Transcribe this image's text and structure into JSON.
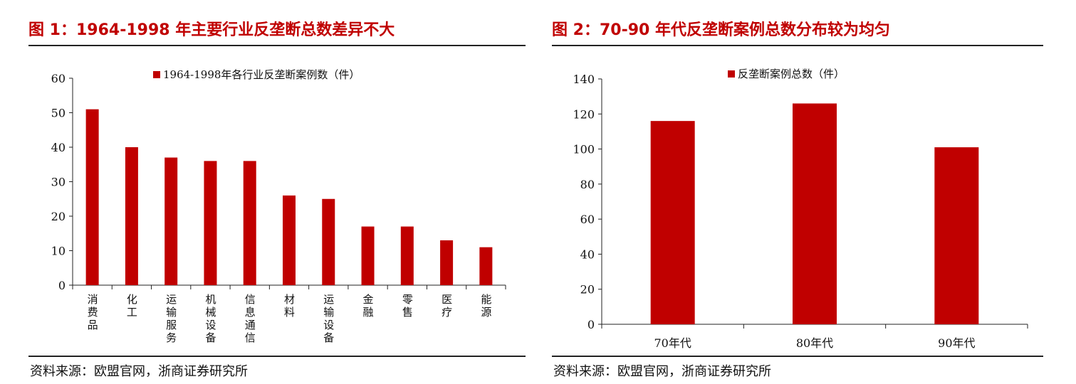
{
  "colors": {
    "bar": "#c00000",
    "title": "#c00000",
    "axis": "#222222"
  },
  "figures": [
    {
      "title": "图 1：1964-1998 年主要行业反垄断总数差异不大",
      "source": "资料来源：欧盟官网，浙商证券研究所"
    },
    {
      "title": "图 2：70-90 年代反垄断案例总数分布较为均匀",
      "source": "资料来源：欧盟官网，浙商证券研究所"
    }
  ],
  "chart_data": [
    {
      "type": "bar",
      "categories": [
        "消费品",
        "化工",
        "运输服务",
        "机械设备",
        "信息通信",
        "材料",
        "运输设备",
        "金融",
        "零售",
        "医疗",
        "能源"
      ],
      "series": [
        {
          "name": "1964-1998年各行业反垄断案例数（件）",
          "values": [
            51,
            40,
            37,
            36,
            36,
            26,
            25,
            17,
            17,
            13,
            11
          ]
        }
      ],
      "yticks": [
        0,
        10,
        20,
        30,
        40,
        50,
        60
      ],
      "ylim": [
        0,
        60
      ],
      "legend": "top",
      "grid": false
    },
    {
      "type": "bar",
      "categories": [
        "70年代",
        "80年代",
        "90年代"
      ],
      "series": [
        {
          "name": "反垄断案例总数（件）",
          "values": [
            116,
            126,
            101
          ]
        }
      ],
      "yticks": [
        0,
        20,
        40,
        60,
        80,
        100,
        120,
        140
      ],
      "ylim": [
        0,
        140
      ],
      "legend": "top",
      "grid": false
    }
  ]
}
